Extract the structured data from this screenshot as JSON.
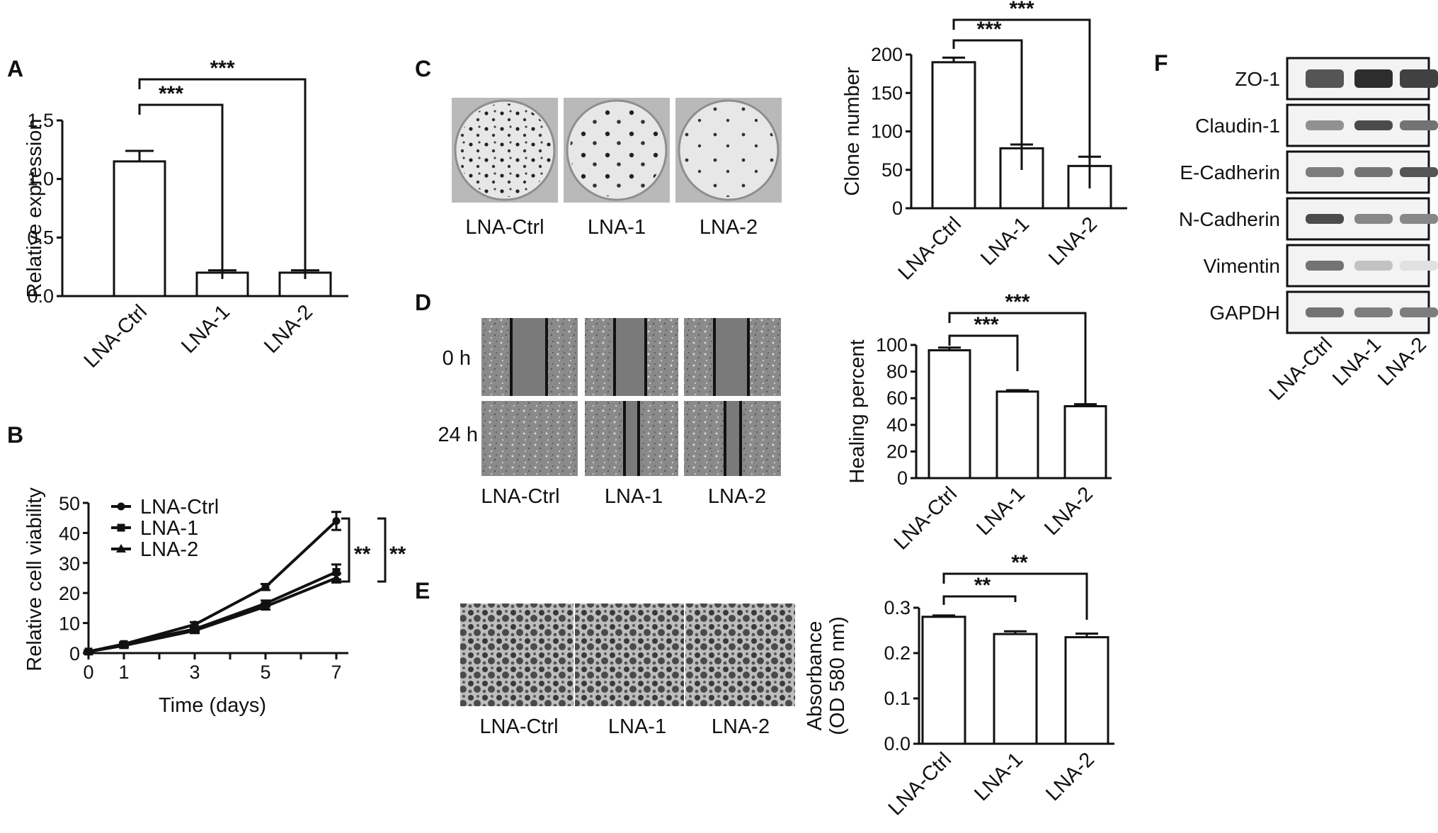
{
  "chart_data": [
    {
      "panel": "A",
      "type": "bar",
      "ylabel": "Relative expression",
      "categories": [
        "LNA-Ctrl",
        "LNA-1",
        "LNA-2"
      ],
      "values": [
        1.15,
        0.2,
        0.2
      ],
      "errors": [
        0.09,
        0.02,
        0.02
      ],
      "ylim": [
        0,
        1.5
      ],
      "yticks": [
        "0.0",
        "0.5",
        "1.0",
        "1.5"
      ],
      "significance": [
        "***",
        "***"
      ]
    },
    {
      "panel": "B",
      "type": "line",
      "xlabel": "Time (days)",
      "ylabel": "Relative cell viability",
      "x": [
        0,
        1,
        3,
        5,
        7
      ],
      "xticks": [
        "0",
        "1",
        "3",
        "5",
        "7"
      ],
      "yticks": [
        "0",
        "10",
        "20",
        "30",
        "40",
        "50"
      ],
      "ylim": [
        0,
        50
      ],
      "legend_position": "top-left",
      "series": [
        {
          "name": "LNA-Ctrl",
          "marker": "circle",
          "values": [
            0.5,
            3,
            9.5,
            22,
            44
          ],
          "errors": [
            0.3,
            0.5,
            0.8,
            1,
            3
          ]
        },
        {
          "name": "LNA-1",
          "marker": "square",
          "values": [
            0.5,
            3,
            8,
            16.5,
            27
          ],
          "errors": [
            0.3,
            0.5,
            0.8,
            1,
            2.5
          ]
        },
        {
          "name": "LNA-2",
          "marker": "triangle",
          "values": [
            0.5,
            2.5,
            7.5,
            15.5,
            25
          ],
          "errors": [
            0.3,
            0.5,
            0.8,
            1,
            1.5
          ]
        }
      ],
      "significance": [
        "**",
        "**"
      ]
    },
    {
      "panel": "C",
      "type": "bar",
      "ylabel": "Clone number",
      "categories": [
        "LNA-Ctrl",
        "LNA-1",
        "LNA-2"
      ],
      "values": [
        190,
        78,
        55
      ],
      "errors": [
        6,
        5,
        12
      ],
      "ylim": [
        0,
        200
      ],
      "yticks": [
        "0",
        "50",
        "100",
        "150",
        "200"
      ],
      "significance": [
        "***",
        "***"
      ]
    },
    {
      "panel": "D",
      "type": "bar",
      "ylabel": "Healing percent",
      "categories": [
        "LNA-Ctrl",
        "LNA-1",
        "LNA-2"
      ],
      "values": [
        96,
        65,
        54
      ],
      "errors": [
        2,
        1,
        1.5
      ],
      "ylim": [
        0,
        100
      ],
      "yticks": [
        "0",
        "20",
        "40",
        "60",
        "80",
        "100"
      ],
      "significance": [
        "***",
        "***"
      ]
    },
    {
      "panel": "E",
      "type": "bar",
      "ylabel": "Absorbance",
      "ylabel2": "(OD 580 nm)",
      "categories": [
        "LNA-Ctrl",
        "LNA-1",
        "LNA-2"
      ],
      "values": [
        0.28,
        0.242,
        0.235
      ],
      "errors": [
        0.003,
        0.006,
        0.008
      ],
      "ylim": [
        0,
        0.3
      ],
      "yticks": [
        "0.0",
        "0.1",
        "0.2",
        "0.3"
      ],
      "significance": [
        "**",
        "**"
      ]
    }
  ],
  "panels": {
    "A": "A",
    "B": "B",
    "C": "C",
    "D": "D",
    "E": "E",
    "F": "F"
  },
  "images": {
    "labels": [
      "LNA-Ctrl",
      "LNA-1",
      "LNA-2"
    ],
    "time_labels": [
      "0 h",
      "24 h"
    ]
  },
  "western": {
    "proteins": [
      "ZO-1",
      "Claudin-1",
      "E-Cadherin",
      "N-Cadherin",
      "Vimentin",
      "GAPDH"
    ],
    "lanes": [
      "LNA-Ctrl",
      "LNA-1",
      "LNA-2"
    ],
    "intensity": [
      [
        0.75,
        0.95,
        0.85
      ],
      [
        0.45,
        0.8,
        0.6
      ],
      [
        0.55,
        0.6,
        0.75
      ],
      [
        0.8,
        0.5,
        0.5
      ],
      [
        0.6,
        0.2,
        0.05
      ],
      [
        0.6,
        0.55,
        0.55
      ]
    ]
  }
}
